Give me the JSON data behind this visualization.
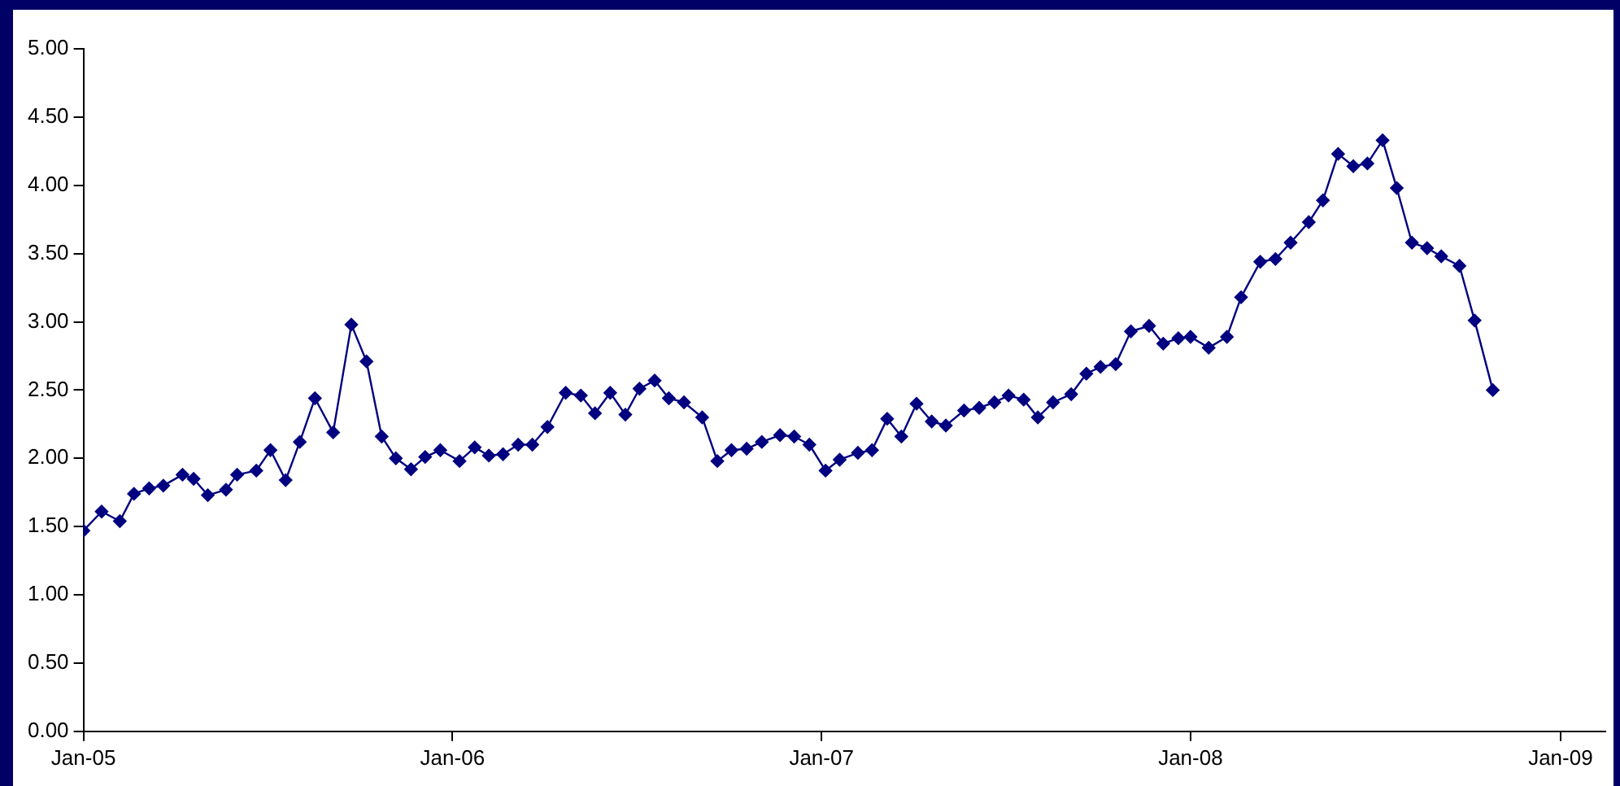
{
  "chart_data": {
    "type": "line",
    "marker": "diamond",
    "grid": false,
    "x": [
      "2005-01-01",
      "2005-01-19",
      "2005-02-06",
      "2005-02-20",
      "2005-03-07",
      "2005-03-21",
      "2005-04-09",
      "2005-04-20",
      "2005-05-04",
      "2005-05-22",
      "2005-06-02",
      "2005-06-21",
      "2005-07-05",
      "2005-07-20",
      "2005-08-03",
      "2005-08-18",
      "2005-09-05",
      "2005-09-23",
      "2005-10-08",
      "2005-10-23",
      "2005-11-06",
      "2005-11-21",
      "2005-12-05",
      "2005-12-20",
      "2006-01-08",
      "2006-01-23",
      "2006-02-06",
      "2006-02-20",
      "2006-03-07",
      "2006-03-21",
      "2006-04-05",
      "2006-04-23",
      "2006-05-08",
      "2006-05-22",
      "2006-06-06",
      "2006-06-21",
      "2006-07-05",
      "2006-07-20",
      "2006-08-03",
      "2006-08-18",
      "2006-09-05",
      "2006-09-20",
      "2006-10-04",
      "2006-10-19",
      "2006-11-03",
      "2006-11-21",
      "2006-12-05",
      "2006-12-20",
      "2007-01-05",
      "2007-01-19",
      "2007-02-06",
      "2007-02-20",
      "2007-03-07",
      "2007-03-21",
      "2007-04-05",
      "2007-04-20",
      "2007-05-04",
      "2007-05-22",
      "2007-06-06",
      "2007-06-21",
      "2007-07-05",
      "2007-07-20",
      "2007-08-03",
      "2007-08-18",
      "2007-09-05",
      "2007-09-20",
      "2007-10-04",
      "2007-10-19",
      "2007-11-03",
      "2007-11-21",
      "2007-12-05",
      "2007-12-20",
      "2008-01-01",
      "2008-01-19",
      "2008-02-06",
      "2008-02-20",
      "2008-03-10",
      "2008-03-25",
      "2008-04-09",
      "2008-04-27",
      "2008-05-11",
      "2008-05-26",
      "2008-06-10",
      "2008-06-24",
      "2008-07-09",
      "2008-07-23",
      "2008-08-07",
      "2008-08-22",
      "2008-09-05",
      "2008-09-23",
      "2008-10-08",
      "2008-10-26"
    ],
    "series": [
      {
        "color": "#000080",
        "values": [
          1.47,
          1.61,
          1.54,
          1.74,
          1.78,
          1.8,
          1.88,
          1.85,
          1.73,
          1.77,
          1.88,
          1.91,
          2.06,
          1.84,
          2.12,
          2.44,
          2.19,
          2.98,
          2.71,
          2.16,
          2.0,
          1.92,
          2.01,
          2.06,
          1.98,
          2.08,
          2.02,
          2.03,
          2.1,
          2.1,
          2.23,
          2.48,
          2.46,
          2.33,
          2.48,
          2.32,
          2.51,
          2.57,
          2.44,
          2.41,
          2.3,
          1.98,
          2.06,
          2.07,
          2.12,
          2.17,
          2.16,
          2.1,
          1.91,
          1.99,
          2.04,
          2.06,
          2.29,
          2.16,
          2.4,
          2.27,
          2.24,
          2.35,
          2.37,
          2.41,
          2.46,
          2.43,
          2.3,
          2.41,
          2.47,
          2.62,
          2.67,
          2.69,
          2.93,
          2.97,
          2.84,
          2.88,
          2.89,
          2.81,
          2.89,
          3.18,
          3.44,
          3.46,
          3.58,
          3.73,
          3.89,
          4.23,
          4.14,
          4.16,
          4.33,
          3.98,
          3.58,
          3.54,
          3.48,
          3.41,
          3.01,
          2.5
        ]
      }
    ],
    "xlim": [
      "2005-01-01",
      "2009-02-14"
    ],
    "xticks": [
      {
        "value": "2005-01-01",
        "label": "Jan-05"
      },
      {
        "value": "2006-01-01",
        "label": "Jan-06"
      },
      {
        "value": "2007-01-01",
        "label": "Jan-07"
      },
      {
        "value": "2008-01-01",
        "label": "Jan-08"
      },
      {
        "value": "2009-01-01",
        "label": "Jan-09"
      }
    ],
    "ylim": [
      0,
      5
    ],
    "yticks": [
      {
        "value": 0,
        "label": "0.00"
      },
      {
        "value": 0.5,
        "label": "0.50"
      },
      {
        "value": 1,
        "label": "1.00"
      },
      {
        "value": 1.5,
        "label": "1.50"
      },
      {
        "value": 2,
        "label": "2.00"
      },
      {
        "value": 2.5,
        "label": "2.50"
      },
      {
        "value": 3,
        "label": "3.00"
      },
      {
        "value": 3.5,
        "label": "3.50"
      },
      {
        "value": 4,
        "label": "4.00"
      },
      {
        "value": 4.5,
        "label": "4.50"
      },
      {
        "value": 5,
        "label": "5.00"
      }
    ]
  }
}
